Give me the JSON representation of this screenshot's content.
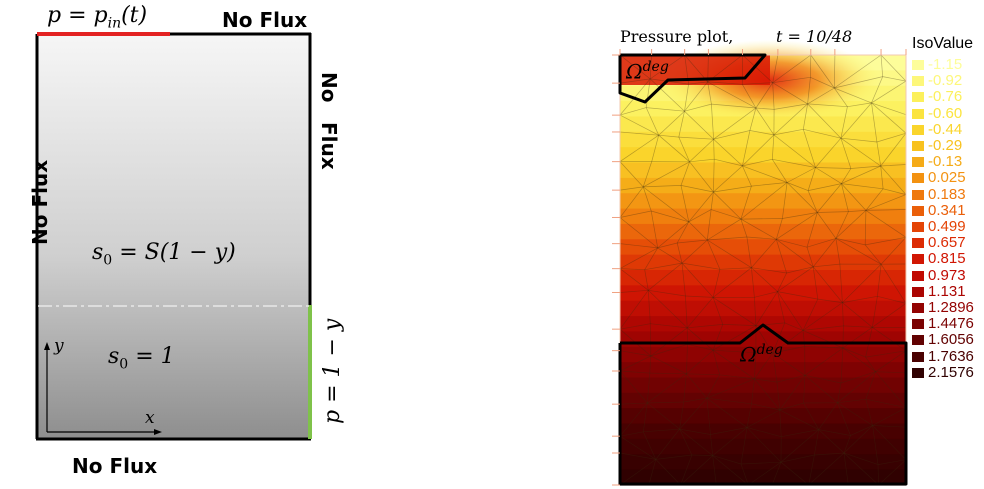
{
  "schematic": {
    "inflow_label": "p = p",
    "inflow_sub": "in",
    "inflow_arg": "(t)",
    "top_right_label": "No  Flux",
    "right_label_1": "No",
    "right_label_2": "Flux",
    "left_label": "No  Flux",
    "bottom_label": "No  Flux",
    "upper_region_label": "s",
    "upper_region_sub": "0",
    "upper_region_rhs": "= S(1 − y)",
    "lower_region_label": "s",
    "lower_region_sub": "0",
    "lower_region_rhs": "= 1",
    "outflow_label": "p = 1 − y",
    "axis_y": "y",
    "axis_x": "x",
    "colors": {
      "inflow": "#e32222",
      "outflow": "#7fc24a",
      "border": "#000000"
    }
  },
  "plot": {
    "title": "Pressure plot,",
    "time_label": "t = 10/48",
    "legend_title": "IsoValue",
    "top_region_label": "Ω",
    "top_region_sup": "deg",
    "bottom_region_label": "Ω",
    "bottom_region_sup": "deg",
    "legend": [
      {
        "label": "-1.15",
        "color": "#fdfd9a"
      },
      {
        "label": "-0.92",
        "color": "#fdf77a"
      },
      {
        "label": "-0.76",
        "color": "#fcf05b"
      },
      {
        "label": "-0.60",
        "color": "#fbe43f"
      },
      {
        "label": "-0.44",
        "color": "#fad52c"
      },
      {
        "label": "-0.29",
        "color": "#f8c21f"
      },
      {
        "label": "-0.13",
        "color": "#f5ab17"
      },
      {
        "label": "0.025",
        "color": "#f39211"
      },
      {
        "label": "0.183",
        "color": "#ef790d"
      },
      {
        "label": "0.341",
        "color": "#ea5f09"
      },
      {
        "label": "0.499",
        "color": "#e44406"
      },
      {
        "label": "0.657",
        "color": "#dc2b04"
      },
      {
        "label": "0.815",
        "color": "#d11603"
      },
      {
        "label": "0.973",
        "color": "#c10902"
      },
      {
        "label": "1.131",
        "color": "#ab0502"
      },
      {
        "label": "1.2896",
        "color": "#930302"
      },
      {
        "label": "1.4476",
        "color": "#7b0202"
      },
      {
        "label": "1.6056",
        "color": "#620202"
      },
      {
        "label": "1.7636",
        "color": "#4a0101"
      },
      {
        "label": "2.1576",
        "color": "#300101"
      }
    ]
  }
}
